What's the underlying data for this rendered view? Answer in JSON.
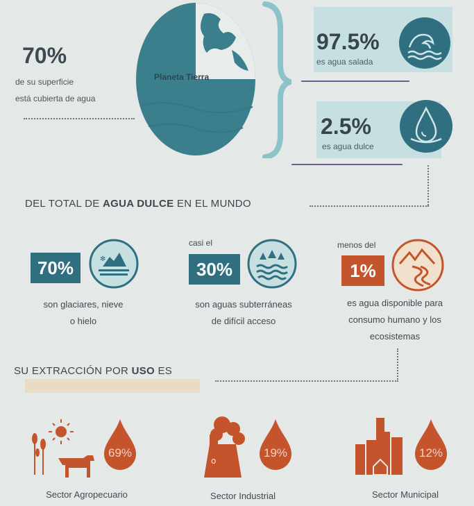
{
  "planet": {
    "surface_percent": "70%",
    "surface_text_line1": "de su superficie",
    "surface_text_line2": "está cubierta de agua",
    "label": "Planeta Tierra"
  },
  "water_types": [
    {
      "percent": "97.5%",
      "text": "es agua salada",
      "icon": "wave-icon"
    },
    {
      "percent": "2.5%",
      "text": "es agua dulce",
      "icon": "water-drop-icon"
    }
  ],
  "fresh_water": {
    "title_pre": "DEL TOTAL DE ",
    "title_bold": "AGUA DULCE",
    "title_post": " EN EL MUNDO",
    "items": [
      {
        "prefix": "",
        "percent": "70%",
        "line1": "son glaciares, nieve",
        "line2": "o hielo",
        "line3": "",
        "icon": "glacier-icon"
      },
      {
        "prefix": "casi el",
        "percent": "30%",
        "line1": "son aguas subterráneas",
        "line2": "de difícil acceso",
        "line3": "",
        "icon": "groundwater-icon"
      },
      {
        "prefix": "menos del",
        "percent": "1%",
        "line1": "es agua disponible para",
        "line2": "consumo humano y los",
        "line3": "ecosistemas",
        "icon": "river-icon"
      }
    ]
  },
  "extraction": {
    "title_pre": "SU EXTRACCIÓN POR ",
    "title_bold": "USO",
    "title_post": " ES",
    "sectors": [
      {
        "label": "Sector Agropecuario",
        "percent": "69%",
        "icon": "agriculture-icon"
      },
      {
        "label": "Sector Industrial",
        "percent": "19%",
        "icon": "factory-icon"
      },
      {
        "label": "Sector Municipal",
        "percent": "12%",
        "icon": "city-icon"
      }
    ]
  },
  "colors": {
    "teal": "#2f6f80",
    "light_teal": "#c6e0e2",
    "orange": "#c4542c",
    "globe": "#3b7f8c"
  }
}
